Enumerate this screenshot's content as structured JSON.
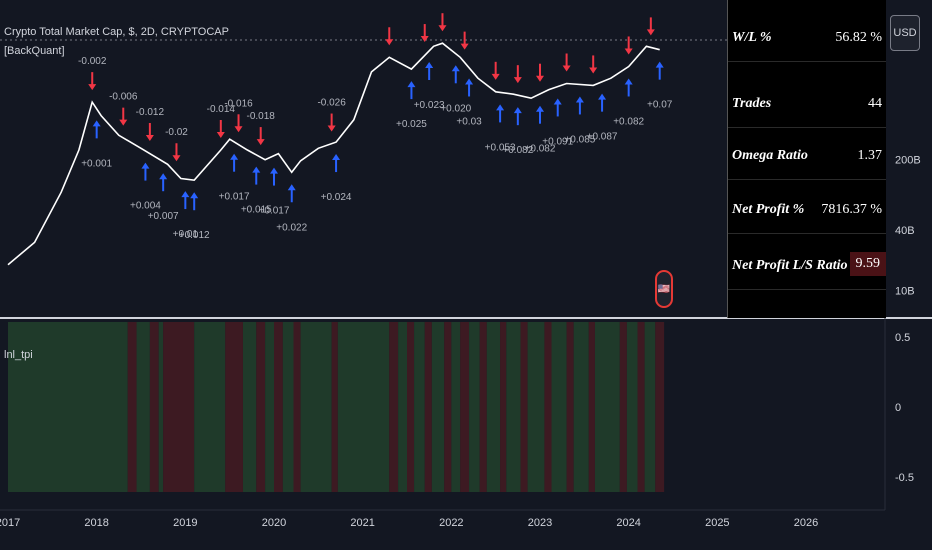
{
  "header": {
    "title": "Crypto Total Market Cap, $, 2D, CRYPTOCAP",
    "study": "[BackQuant]",
    "currency_button": "USD",
    "osc_label": "lnl_tpi"
  },
  "stats_table": {
    "rows": [
      {
        "label": "W/L %",
        "value": "56.82 %",
        "highlight": false
      },
      {
        "label": "Trades",
        "value": "44",
        "highlight": false
      },
      {
        "label": "Omega Ratio",
        "value": "1.37",
        "highlight": false
      },
      {
        "label": "Net Profit %",
        "value": "7816.37 %",
        "highlight": false
      },
      {
        "label": "Net Profit L/S Ratio",
        "value": "9.59",
        "highlight": true
      }
    ]
  },
  "colors": {
    "background": "#131722",
    "price_line": "#ffffff",
    "long_arrow": "#2962ff",
    "short_arrow": "#f23645",
    "long_band": "#1f3a2a",
    "short_band": "#3d1a22",
    "highlight_cell": "#4a1216"
  },
  "chart_data": [
    {
      "type": "line",
      "title": "Crypto Total Market Cap, $, 2D, CRYPTOCAP",
      "x": [
        2017.0,
        2017.3,
        2017.6,
        2017.8,
        2017.95,
        2018.05,
        2018.25,
        2018.5,
        2018.8,
        2018.95,
        2019.1,
        2019.4,
        2019.5,
        2019.7,
        2019.9,
        2020.05,
        2020.2,
        2020.3,
        2020.5,
        2020.7,
        2020.9,
        2021.1,
        2021.3,
        2021.55,
        2021.8,
        2021.9,
        2022.1,
        2022.3,
        2022.5,
        2022.7,
        2022.9,
        2023.1,
        2023.3,
        2023.6,
        2023.8,
        2024.0,
        2024.2,
        2024.35
      ],
      "values": [
        18,
        30,
        95,
        250,
        750,
        550,
        350,
        260,
        180,
        130,
        125,
        250,
        320,
        250,
        200,
        230,
        150,
        195,
        260,
        300,
        500,
        1500,
        2100,
        1600,
        2700,
        2900,
        2100,
        1300,
        950,
        900,
        820,
        1000,
        1150,
        1100,
        1300,
        1700,
        2700,
        2500
      ],
      "xticks": [
        "2017",
        "2018",
        "2019",
        "2020",
        "2021",
        "2022",
        "2023",
        "2024",
        "2025",
        "2026"
      ],
      "yticks": [
        "10B",
        "40B",
        "200B"
      ],
      "log_scale": true
    },
    {
      "type": "table",
      "name": "lnl_tpi",
      "yticks": [
        "0.5",
        "0",
        "-0.5"
      ],
      "segments": [
        {
          "from": 2017.0,
          "to": 2018.35,
          "signal": 1
        },
        {
          "from": 2018.35,
          "to": 2018.45,
          "signal": -1
        },
        {
          "from": 2018.45,
          "to": 2018.6,
          "signal": 1
        },
        {
          "from": 2018.6,
          "to": 2018.7,
          "signal": -1
        },
        {
          "from": 2018.7,
          "to": 2018.75,
          "signal": 1
        },
        {
          "from": 2018.75,
          "to": 2019.1,
          "signal": -1
        },
        {
          "from": 2019.1,
          "to": 2019.45,
          "signal": 1
        },
        {
          "from": 2019.45,
          "to": 2019.65,
          "signal": -1
        },
        {
          "from": 2019.65,
          "to": 2019.8,
          "signal": 1
        },
        {
          "from": 2019.8,
          "to": 2019.9,
          "signal": -1
        },
        {
          "from": 2019.9,
          "to": 2020.0,
          "signal": 1
        },
        {
          "from": 2020.0,
          "to": 2020.1,
          "signal": -1
        },
        {
          "from": 2020.1,
          "to": 2020.22,
          "signal": 1
        },
        {
          "from": 2020.22,
          "to": 2020.3,
          "signal": -1
        },
        {
          "from": 2020.3,
          "to": 2020.65,
          "signal": 1
        },
        {
          "from": 2020.65,
          "to": 2020.72,
          "signal": -1
        },
        {
          "from": 2020.72,
          "to": 2021.3,
          "signal": 1
        },
        {
          "from": 2021.3,
          "to": 2021.4,
          "signal": -1
        },
        {
          "from": 2021.4,
          "to": 2021.5,
          "signal": 1
        },
        {
          "from": 2021.5,
          "to": 2021.58,
          "signal": -1
        },
        {
          "from": 2021.58,
          "to": 2021.7,
          "signal": 1
        },
        {
          "from": 2021.7,
          "to": 2021.78,
          "signal": -1
        },
        {
          "from": 2021.78,
          "to": 2021.92,
          "signal": 1
        },
        {
          "from": 2021.92,
          "to": 2022.0,
          "signal": -1
        },
        {
          "from": 2022.0,
          "to": 2022.1,
          "signal": 1
        },
        {
          "from": 2022.1,
          "to": 2022.2,
          "signal": -1
        },
        {
          "from": 2022.2,
          "to": 2022.32,
          "signal": 1
        },
        {
          "from": 2022.32,
          "to": 2022.4,
          "signal": -1
        },
        {
          "from": 2022.4,
          "to": 2022.55,
          "signal": 1
        },
        {
          "from": 2022.55,
          "to": 2022.62,
          "signal": -1
        },
        {
          "from": 2022.62,
          "to": 2022.78,
          "signal": 1
        },
        {
          "from": 2022.78,
          "to": 2022.86,
          "signal": -1
        },
        {
          "from": 2022.86,
          "to": 2023.05,
          "signal": 1
        },
        {
          "from": 2023.05,
          "to": 2023.13,
          "signal": -1
        },
        {
          "from": 2023.13,
          "to": 2023.3,
          "signal": 1
        },
        {
          "from": 2023.3,
          "to": 2023.38,
          "signal": -1
        },
        {
          "from": 2023.38,
          "to": 2023.55,
          "signal": 1
        },
        {
          "from": 2023.55,
          "to": 2023.62,
          "signal": -1
        },
        {
          "from": 2023.62,
          "to": 2023.9,
          "signal": 1
        },
        {
          "from": 2023.9,
          "to": 2023.98,
          "signal": -1
        },
        {
          "from": 2023.98,
          "to": 2024.1,
          "signal": 1
        },
        {
          "from": 2024.1,
          "to": 2024.18,
          "signal": -1
        },
        {
          "from": 2024.18,
          "to": 2024.3,
          "signal": 1
        },
        {
          "from": 2024.3,
          "to": 2024.4,
          "signal": -1
        }
      ]
    }
  ],
  "trade_markers": [
    {
      "x": 2018.0,
      "dir": "long",
      "label": "+0.001"
    },
    {
      "x": 2018.55,
      "dir": "long",
      "label": "+0.004"
    },
    {
      "x": 2018.75,
      "dir": "long",
      "label": "+0.007"
    },
    {
      "x": 2019.0,
      "dir": "long",
      "label": "+0.01"
    },
    {
      "x": 2019.1,
      "dir": "long",
      "label": "+0.012"
    },
    {
      "x": 2019.55,
      "dir": "long",
      "label": "+0.017"
    },
    {
      "x": 2019.8,
      "dir": "long",
      "label": "+0.015"
    },
    {
      "x": 2020.0,
      "dir": "long",
      "label": "+0.017"
    },
    {
      "x": 2020.2,
      "dir": "long",
      "label": "+0.022"
    },
    {
      "x": 2020.7,
      "dir": "long",
      "label": "+0.024"
    },
    {
      "x": 2021.55,
      "dir": "long",
      "label": "+0.025"
    },
    {
      "x": 2021.75,
      "dir": "long",
      "label": "+0.023"
    },
    {
      "x": 2022.05,
      "dir": "long",
      "label": "+0.020"
    },
    {
      "x": 2022.2,
      "dir": "long",
      "label": "+0.03"
    },
    {
      "x": 2022.55,
      "dir": "long",
      "label": "+0.053"
    },
    {
      "x": 2022.75,
      "dir": "long",
      "label": "+0.082"
    },
    {
      "x": 2023.0,
      "dir": "long",
      "label": "+0.082"
    },
    {
      "x": 2023.2,
      "dir": "long",
      "label": "+0.091"
    },
    {
      "x": 2023.45,
      "dir": "long",
      "label": "+0.085"
    },
    {
      "x": 2023.7,
      "dir": "long",
      "label": "+0.087"
    },
    {
      "x": 2024.0,
      "dir": "long",
      "label": "+0.082"
    },
    {
      "x": 2024.35,
      "dir": "long",
      "label": "+0.07"
    },
    {
      "x": 2017.95,
      "dir": "short",
      "label": "-0.002"
    },
    {
      "x": 2018.3,
      "dir": "short",
      "label": "-0.006"
    },
    {
      "x": 2018.6,
      "dir": "short",
      "label": "-0.012"
    },
    {
      "x": 2018.9,
      "dir": "short",
      "label": "-0.02"
    },
    {
      "x": 2019.4,
      "dir": "short",
      "label": "-0.014"
    },
    {
      "x": 2019.6,
      "dir": "short",
      "label": "-0.016"
    },
    {
      "x": 2019.85,
      "dir": "short",
      "label": "-0.018"
    },
    {
      "x": 2020.65,
      "dir": "short",
      "label": "-0.026"
    },
    {
      "x": 2021.3,
      "dir": "short",
      "label": ""
    },
    {
      "x": 2021.7,
      "dir": "short",
      "label": ""
    },
    {
      "x": 2021.9,
      "dir": "short",
      "label": ""
    },
    {
      "x": 2022.15,
      "dir": "short",
      "label": ""
    },
    {
      "x": 2022.5,
      "dir": "short",
      "label": ""
    },
    {
      "x": 2022.75,
      "dir": "short",
      "label": ""
    },
    {
      "x": 2023.0,
      "dir": "short",
      "label": ""
    },
    {
      "x": 2023.3,
      "dir": "short",
      "label": ""
    },
    {
      "x": 2023.6,
      "dir": "short",
      "label": ""
    },
    {
      "x": 2024.0,
      "dir": "short",
      "label": ""
    },
    {
      "x": 2024.25,
      "dir": "short",
      "label": ""
    }
  ]
}
